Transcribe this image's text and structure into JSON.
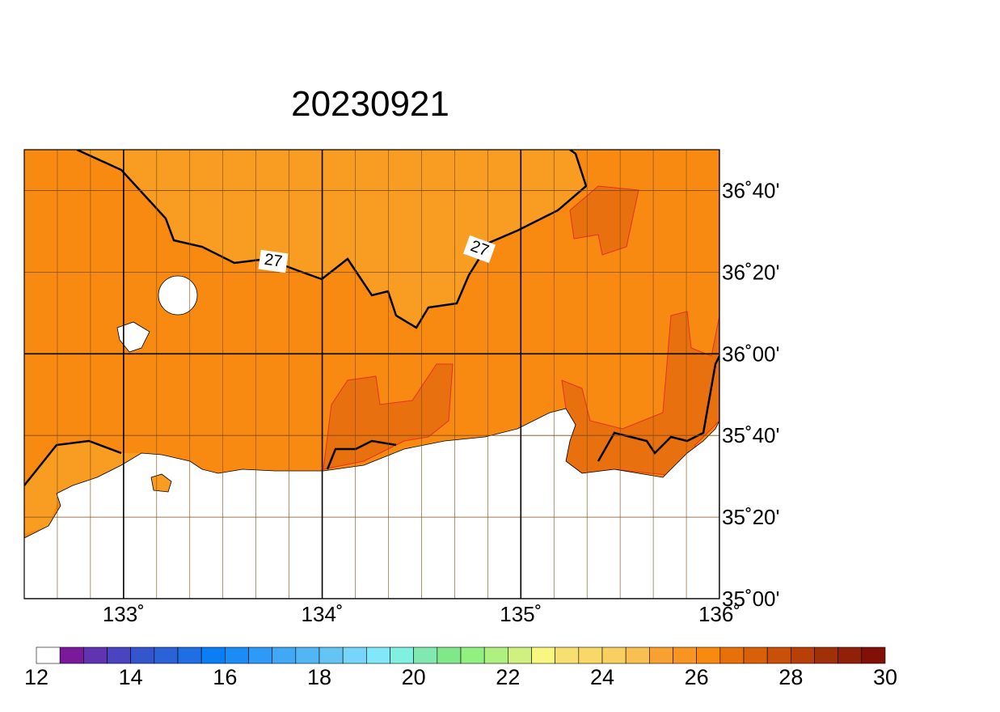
{
  "title": "20230921",
  "map": {
    "lon_range": [
      132.5,
      136
    ],
    "lat_range": [
      35,
      36.8333
    ],
    "lon_ticks": [
      {
        "value": 133,
        "label": "133˚"
      },
      {
        "value": 134,
        "label": "134˚"
      },
      {
        "value": 135,
        "label": "135˚"
      },
      {
        "value": 136,
        "label": "136˚"
      }
    ],
    "lat_ticks": [
      {
        "value": 35,
        "label": "35˚00'"
      },
      {
        "value": 35.3333,
        "label": "35˚20'"
      },
      {
        "value": 35.6667,
        "label": "35˚40'"
      },
      {
        "value": 36,
        "label": "36˚00'"
      },
      {
        "value": 36.3333,
        "label": "36˚20'"
      },
      {
        "value": 36.6667,
        "label": "36˚40'"
      }
    ],
    "contour_labels": [
      "27",
      "27"
    ]
  },
  "colorbar": {
    "range": [
      12,
      30
    ],
    "ticks": [
      12,
      14,
      16,
      18,
      20,
      22,
      24,
      26,
      28,
      30
    ],
    "colors": [
      "#ffffff",
      "#7a1a9a",
      "#6034b0",
      "#4a44c0",
      "#3555cc",
      "#2a62d8",
      "#1f6ee4",
      "#0a7ff5",
      "#1a8cf5",
      "#2d9af5",
      "#40a8f5",
      "#52b6f5",
      "#64c5f5",
      "#76d5f8",
      "#80e8f8",
      "#80f0e0",
      "#80e8b0",
      "#80e888",
      "#90f080",
      "#b0f080",
      "#d0f080",
      "#f8f880",
      "#f8e070",
      "#f8d868",
      "#f8d060",
      "#f8c050",
      "#f8a030",
      "#f89420",
      "#f88a10",
      "#e87008",
      "#d86008",
      "#c85008",
      "#b84008",
      "#a03008",
      "#902008",
      "#801008"
    ]
  }
}
